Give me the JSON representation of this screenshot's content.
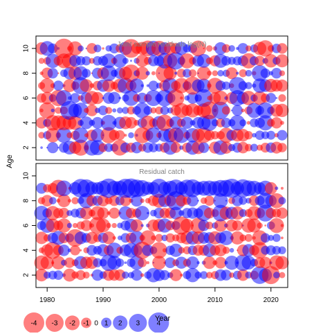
{
  "chart_data": {
    "type": "scatter",
    "subtype": "bubble-residuals",
    "xlabel": "Year",
    "ylabel": "Age",
    "x_ticks": [
      1980,
      1990,
      2000,
      2010,
      2020
    ],
    "xlim": [
      1978,
      2023
    ],
    "colors": {
      "positive": "#0000ff",
      "negative": "#ff0000",
      "title": "#808080"
    },
    "panels": [
      {
        "id": "survey",
        "title": "Joint sample residuals log(N)",
        "ylim": [
          1,
          11
        ],
        "y_ticks": [
          2,
          4,
          6,
          8,
          10
        ],
        "years": [
          1979,
          2022
        ],
        "ages": [
          2,
          3,
          4,
          5,
          6,
          7,
          8,
          9,
          10
        ],
        "seed": 17
      },
      {
        "id": "catch",
        "title": "Residual catch",
        "ylim": [
          1,
          11
        ],
        "y_ticks": [
          2,
          4,
          6,
          8,
          10
        ],
        "years": [
          1979,
          2022
        ],
        "ages": [
          2,
          3,
          4,
          5,
          6,
          7,
          8,
          9
        ],
        "seed": 91
      }
    ],
    "legend": {
      "placement": "bottom-left",
      "values": [
        -4,
        -3,
        -2,
        -1,
        0,
        1,
        2,
        3,
        4
      ],
      "labels": [
        "-4",
        "-3",
        "-2",
        "-1",
        "0",
        "1",
        "2",
        "3",
        "4"
      ]
    }
  }
}
